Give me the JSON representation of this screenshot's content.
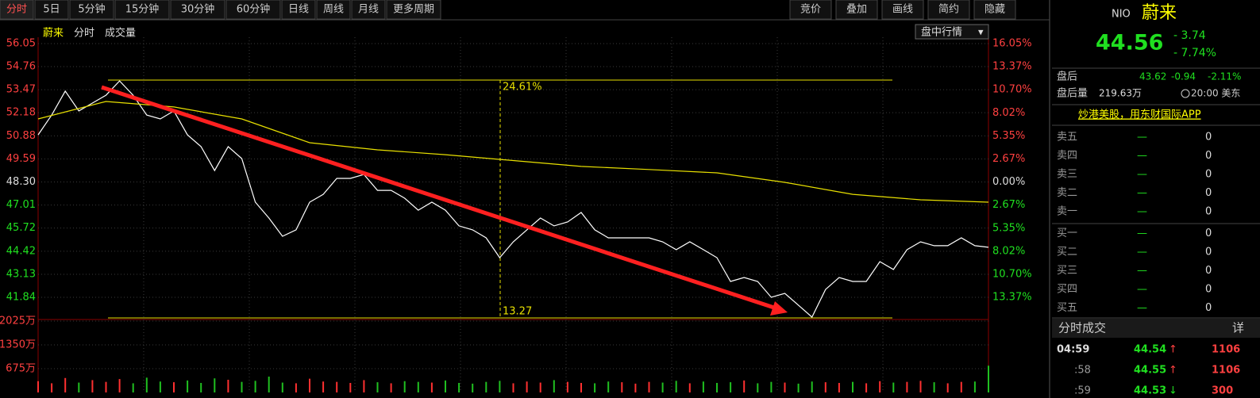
{
  "toolbar": {
    "left_tabs": [
      "分时",
      "5日",
      "5分钟",
      "15分钟",
      "30分钟",
      "60分钟",
      "日线",
      "周线",
      "月线",
      "更多周期"
    ],
    "right_tabs": [
      "竞价",
      "叠加",
      "画线",
      "简约",
      "隐藏"
    ]
  },
  "chart_header": {
    "name": "蔚来",
    "mode": "分时",
    "volume": "成交量",
    "menu": "盘中行情"
  },
  "annotations": {
    "top": "24.61%",
    "bottom": "13.27"
  },
  "chart_data": {
    "type": "line",
    "ylim": [
      41.84,
      56.05
    ],
    "yticks": [
      56.05,
      54.76,
      53.47,
      52.18,
      50.88,
      49.59,
      {
        "value": 48.3,
        "label": "48.30"
      },
      47.01,
      45.72,
      44.42,
      43.13,
      41.84
    ],
    "y2lim": [
      -13.37,
      16.05
    ],
    "y2ticks": [
      {
        "value": 16.05,
        "label": "16.05%"
      },
      {
        "value": 13.37,
        "label": "13.37%"
      },
      {
        "value": 10.7,
        "label": "10.70%"
      },
      {
        "value": 8.02,
        "label": "8.02%"
      },
      {
        "value": 5.35,
        "label": "5.35%"
      },
      {
        "value": 2.67,
        "label": "2.67%"
      },
      {
        "value": 0,
        "label": "0.00%"
      },
      {
        "value": -2.67,
        "label": "2.67%"
      },
      {
        "value": -5.35,
        "label": "5.35%"
      },
      {
        "value": -8.02,
        "label": "8.02%"
      },
      {
        "value": -10.7,
        "label": "10.70%"
      },
      {
        "value": -13.37,
        "label": "13.37%"
      }
    ],
    "series": [
      {
        "name": "价格",
        "color": "#ffffff",
        "values": [
          50.94,
          52.05,
          53.39,
          52.28,
          52.72,
          53.16,
          53.96,
          53.16,
          52.05,
          51.83,
          52.28,
          50.94,
          50.28,
          48.94,
          50.28,
          49.61,
          47.17,
          46.28,
          45.26,
          45.62,
          47.17,
          47.61,
          48.5,
          48.5,
          48.72,
          47.83,
          47.83,
          47.39,
          46.72,
          47.17,
          46.72,
          45.84,
          45.62,
          45.17,
          44.06,
          44.95,
          45.62,
          46.28,
          45.84,
          46.06,
          46.59,
          45.62,
          45.17,
          45.17,
          45.17,
          45.17,
          44.95,
          44.51,
          44.95,
          44.51,
          44.06,
          42.73,
          42.95,
          42.73,
          41.84,
          42.06,
          41.4,
          40.73,
          42.28,
          42.95,
          42.73,
          42.73,
          43.84,
          43.4,
          44.51,
          44.95,
          44.73,
          44.73,
          45.17,
          44.73,
          44.64
        ]
      },
      {
        "name": "均价",
        "color": "#e8e000",
        "values": [
          51.83,
          52.81,
          52.5,
          51.83,
          50.5,
          50.1,
          49.83,
          49.5,
          49.17,
          49.0,
          48.81,
          48.28,
          47.61,
          47.3,
          47.17
        ]
      }
    ],
    "volume": {
      "ylim": [
        0,
        2025
      ],
      "yticks": [
        {
          "value": 2025,
          "label": "2025万"
        },
        {
          "value": 1350,
          "label": "1350万"
        },
        {
          "value": 675,
          "label": "675万"
        }
      ],
      "values": [
        320,
        260,
        410,
        280,
        350,
        300,
        380,
        260,
        420,
        310,
        290,
        340,
        270,
        400,
        360,
        300,
        330,
        450,
        280,
        260,
        390,
        310,
        300,
        270,
        350,
        290,
        260,
        320,
        300,
        280,
        340,
        270,
        250,
        300,
        330,
        260,
        310,
        280,
        350,
        300,
        270,
        260,
        310,
        290,
        250,
        300,
        280,
        330,
        260,
        310,
        270,
        290,
        340,
        260,
        300,
        280,
        250,
        310,
        290,
        270,
        300,
        260,
        320,
        280,
        300,
        330,
        290,
        260,
        300,
        310,
        760
      ]
    }
  },
  "quote": {
    "code": "NIO",
    "name": "蔚来",
    "price": "44.56",
    "change": "- 3.74",
    "pct": "- 7.74%",
    "after_label": "盘后",
    "after_price": "43.62",
    "after_change": "-0.94",
    "after_pct": "-2.11%",
    "after_vol_label": "盘后量",
    "after_vol": "219.63万",
    "time": "20:00 美东",
    "promo": "炒港美股，用东财国际APP",
    "book": [
      [
        "卖五",
        "—",
        "0"
      ],
      [
        "卖四",
        "—",
        "0"
      ],
      [
        "卖三",
        "—",
        "0"
      ],
      [
        "卖二",
        "—",
        "0"
      ],
      [
        "卖一",
        "—",
        "0"
      ],
      [
        "买一",
        "—",
        "0"
      ],
      [
        "买二",
        "—",
        "0"
      ],
      [
        "买三",
        "—",
        "0"
      ],
      [
        "买四",
        "—",
        "0"
      ],
      [
        "买五",
        "—",
        "0"
      ]
    ],
    "trades_title": "分时成交",
    "trades_more": "详",
    "trades": [
      [
        "04:59",
        "44.54",
        "1106"
      ],
      [
        ":58",
        "44.55",
        "1106"
      ],
      [
        ":59",
        "44.53",
        "300"
      ]
    ]
  }
}
